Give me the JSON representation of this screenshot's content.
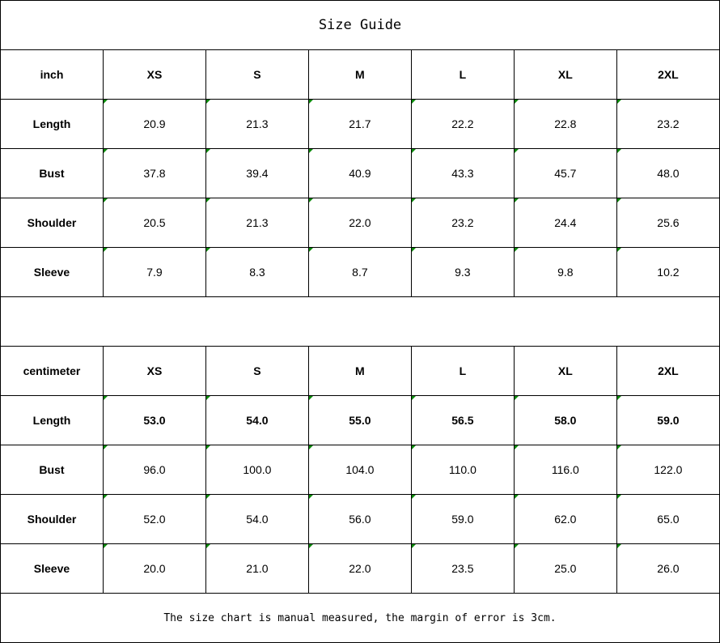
{
  "title": "Size Guide",
  "inch": {
    "unit": "inch",
    "sizes": [
      "XS",
      "S",
      "M",
      "L",
      "XL",
      "2XL"
    ],
    "rows": [
      {
        "label": "Length",
        "values": [
          "20.9",
          "21.3",
          "21.7",
          "22.2",
          "22.8",
          "23.2"
        ]
      },
      {
        "label": "Bust",
        "values": [
          "37.8",
          "39.4",
          "40.9",
          "43.3",
          "45.7",
          "48.0"
        ]
      },
      {
        "label": "Shoulder",
        "values": [
          "20.5",
          "21.3",
          "22.0",
          "23.2",
          "24.4",
          "25.6"
        ]
      },
      {
        "label": "Sleeve",
        "values": [
          "7.9",
          "8.3",
          "8.7",
          "9.3",
          "9.8",
          "10.2"
        ]
      }
    ]
  },
  "cm": {
    "unit": "centimeter",
    "sizes": [
      "XS",
      "S",
      "M",
      "L",
      "XL",
      "2XL"
    ],
    "rows": [
      {
        "label": "Length",
        "values": [
          "53.0",
          "54.0",
          "55.0",
          "56.5",
          "58.0",
          "59.0"
        ]
      },
      {
        "label": "Bust",
        "values": [
          "96.0",
          "100.0",
          "104.0",
          "110.0",
          "116.0",
          "122.0"
        ]
      },
      {
        "label": "Shoulder",
        "values": [
          "52.0",
          "54.0",
          "56.0",
          "59.0",
          "62.0",
          "65.0"
        ]
      },
      {
        "label": "Sleeve",
        "values": [
          "20.0",
          "21.0",
          "22.0",
          "23.5",
          "25.0",
          "26.0"
        ]
      }
    ]
  },
  "note": "The size chart is manual measured, the margin of error is 3cm.",
  "marker_color": "#0a8a0a"
}
